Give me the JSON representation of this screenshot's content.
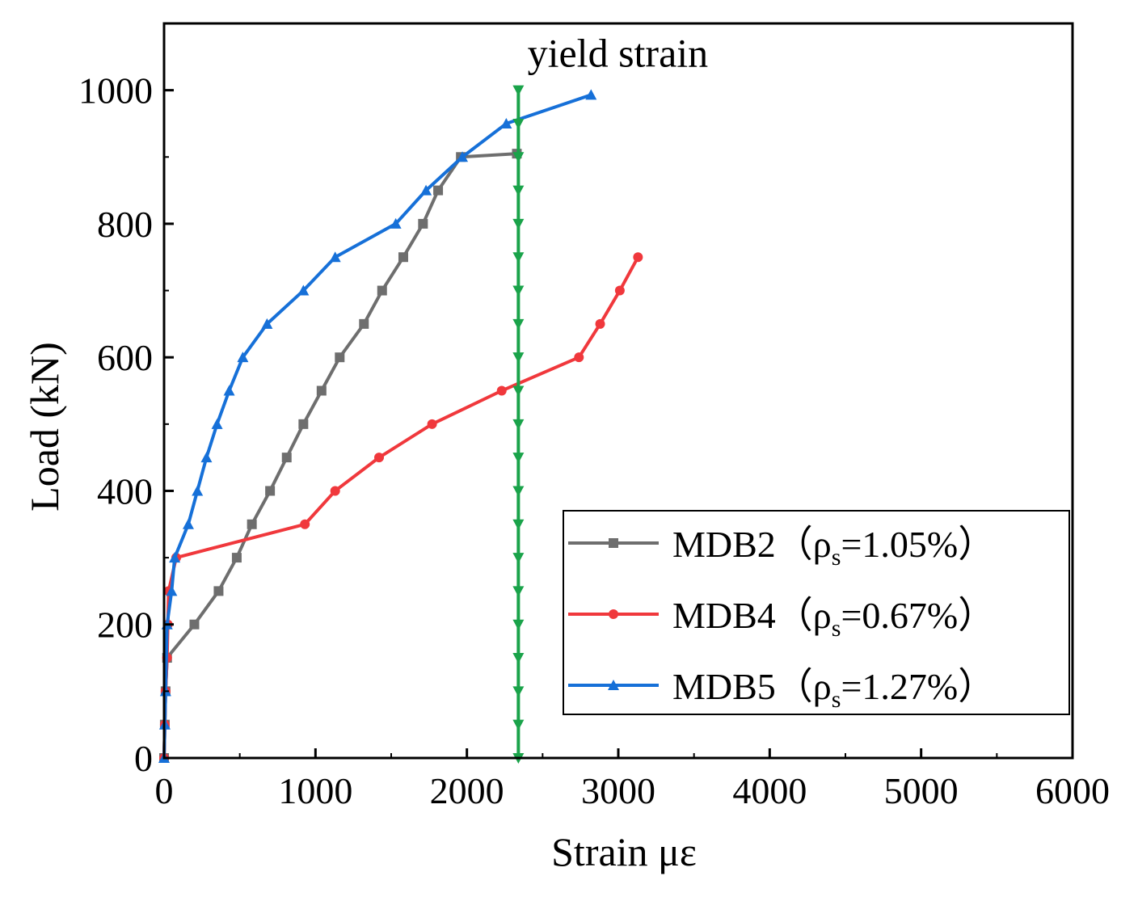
{
  "chart_data": {
    "type": "line",
    "title": "",
    "xlabel": "Strain  με",
    "ylabel": "Load (kN)",
    "xlim": [
      0,
      6000
    ],
    "ylim": [
      0,
      1100
    ],
    "xticks": [
      0,
      1000,
      2000,
      3000,
      4000,
      5000,
      6000
    ],
    "yticks": [
      0,
      200,
      400,
      600,
      800,
      1000
    ],
    "xtick_labels": [
      "0",
      "1000",
      "2000",
      "3000",
      "4000",
      "5000",
      "6000"
    ],
    "ytick_labels": [
      "0",
      "200",
      "400",
      "600",
      "800",
      "1000"
    ],
    "grid": false,
    "legend_position": "bottom-right",
    "series": [
      {
        "name": "MDB2",
        "legend_prefix": "MDB2（ρ",
        "legend_sub": "s",
        "legend_suffix": "=1.05%）",
        "color": "#6e6e6e",
        "marker": "square",
        "x": [
          0,
          5,
          10,
          20,
          200,
          360,
          480,
          580,
          700,
          810,
          920,
          1040,
          1160,
          1320,
          1440,
          1580,
          1710,
          1810,
          1960,
          2330
        ],
        "y": [
          0,
          50,
          100,
          150,
          200,
          250,
          300,
          350,
          400,
          450,
          500,
          550,
          600,
          650,
          700,
          750,
          800,
          850,
          900,
          905
        ]
      },
      {
        "name": "MDB4",
        "legend_prefix": "MDB4（ρ",
        "legend_sub": "s",
        "legend_suffix": "=0.67%）",
        "color": "#f0383c",
        "marker": "circle",
        "x": [
          0,
          5,
          10,
          20,
          25,
          30,
          80,
          930,
          1130,
          1420,
          1770,
          2230,
          2740,
          2880,
          3010,
          3130
        ],
        "y": [
          0,
          50,
          100,
          150,
          200,
          250,
          300,
          350,
          400,
          450,
          500,
          550,
          600,
          650,
          700,
          750
        ],
        "legend_marker": "circle"
      },
      {
        "name": "MDB5",
        "legend_prefix": "MDB5（ρ",
        "legend_sub": "s",
        "legend_suffix": "=1.27%）",
        "color": "#1670d8",
        "marker": "triangle-up",
        "x": [
          0,
          5,
          10,
          20,
          50,
          70,
          160,
          220,
          280,
          350,
          430,
          520,
          680,
          920,
          1130,
          1530,
          1730,
          1970,
          2260,
          2820
        ],
        "y": [
          0,
          50,
          100,
          200,
          250,
          300,
          350,
          400,
          450,
          500,
          550,
          600,
          650,
          700,
          750,
          800,
          850,
          900,
          950,
          993
        ]
      },
      {
        "name": "yield strain",
        "color": "#1aa34a",
        "marker": "triangle-down",
        "x": [
          2340,
          2340,
          2340,
          2340,
          2340,
          2340,
          2340,
          2340,
          2340,
          2340,
          2340,
          2340,
          2340,
          2340,
          2340,
          2340,
          2340,
          2340,
          2340,
          2340,
          2340
        ],
        "y": [
          0,
          50,
          100,
          150,
          200,
          250,
          300,
          350,
          400,
          450,
          500,
          550,
          600,
          650,
          700,
          750,
          800,
          850,
          900,
          950,
          1000
        ]
      }
    ],
    "annotations": [
      {
        "text": "yield strain",
        "x": 2400,
        "y": 1035
      }
    ]
  }
}
